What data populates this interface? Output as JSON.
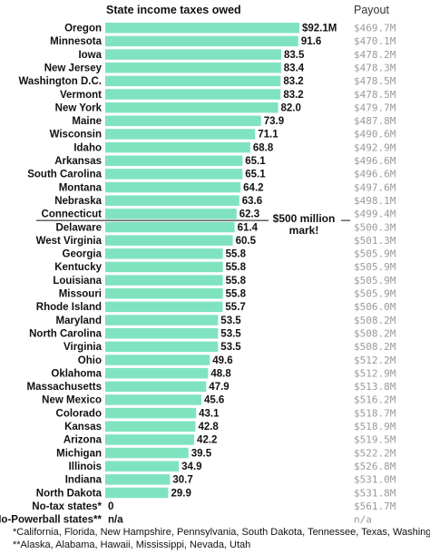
{
  "chart_data": {
    "type": "bar",
    "orientation": "horizontal",
    "title": "State income taxes owed",
    "payout_header": "Payout",
    "bar_color": "#7fe3c0",
    "xlim": [
      0,
      92.1
    ],
    "states": [
      "Oregon",
      "Minnesota",
      "Iowa",
      "New Jersey",
      "Washington D.C.",
      "Vermont",
      "New York",
      "Maine",
      "Wisconsin",
      "Idaho",
      "Arkansas",
      "South Carolina",
      "Montana",
      "Nebraska",
      "Connecticut",
      "Delaware",
      "West Virginia",
      "Georgia",
      "Kentucky",
      "Louisiana",
      "Missouri",
      "Rhode Island",
      "Maryland",
      "North Carolina",
      "Virginia",
      "Ohio",
      "Oklahoma",
      "Massachusetts",
      "New Mexico",
      "Colorado",
      "Kansas",
      "Arizona",
      "Michigan",
      "Illinois",
      "Indiana",
      "North Dakota",
      "No-tax states*",
      "No-Powerball states**"
    ],
    "values": [
      92.1,
      91.6,
      83.5,
      83.4,
      83.2,
      83.2,
      82.0,
      73.9,
      71.1,
      68.8,
      65.1,
      65.1,
      64.2,
      63.6,
      62.3,
      61.4,
      60.5,
      55.8,
      55.8,
      55.8,
      55.8,
      55.7,
      53.5,
      53.5,
      53.5,
      49.6,
      48.8,
      47.9,
      45.6,
      43.1,
      42.8,
      42.2,
      39.5,
      34.9,
      30.7,
      29.9,
      0,
      null
    ],
    "value_labels": [
      "$92.1M",
      "91.6",
      "83.5",
      "83.4",
      "83.2",
      "83.2",
      "82.0",
      "73.9",
      "71.1",
      "68.8",
      "65.1",
      "65.1",
      "64.2",
      "63.6",
      "62.3",
      "61.4",
      "60.5",
      "55.8",
      "55.8",
      "55.8",
      "55.8",
      "55.7",
      "53.5",
      "53.5",
      "53.5",
      "49.6",
      "48.8",
      "47.9",
      "45.6",
      "43.1",
      "42.8",
      "42.2",
      "39.5",
      "34.9",
      "30.7",
      "29.9",
      "0",
      "n/a"
    ],
    "payouts": [
      "$469.7M",
      "$470.1M",
      "$478.2M",
      "$478.3M",
      "$478.5M",
      "$478.5M",
      "$479.7M",
      "$487.8M",
      "$490.6M",
      "$492.9M",
      "$496.6M",
      "$496.6M",
      "$497.6M",
      "$498.1M",
      "$499.4M",
      "$500.3M",
      "$501.3M",
      "$505.9M",
      "$505.9M",
      "$505.9M",
      "$505.9M",
      "$506.0M",
      "$508.2M",
      "$508.2M",
      "$508.2M",
      "$512.2M",
      "$512.9M",
      "$513.8M",
      "$516.2M",
      "$518.7M",
      "$518.9M",
      "$519.5M",
      "$522.2M",
      "$526.8M",
      "$531.0M",
      "$531.8M",
      "$561.7M",
      "n/a"
    ],
    "annotation": {
      "text_line1": "$500 million",
      "text_line2": "mark!",
      "after_index": 14
    },
    "footnotes": [
      "*California, Florida, New Hampshire, Pennsylvania, South Dakota, Tennessee, Texas, Washington, Wyoming",
      "**Alaska, Alabama, Hawaii, Mississippi, Nevada, Utah"
    ]
  }
}
